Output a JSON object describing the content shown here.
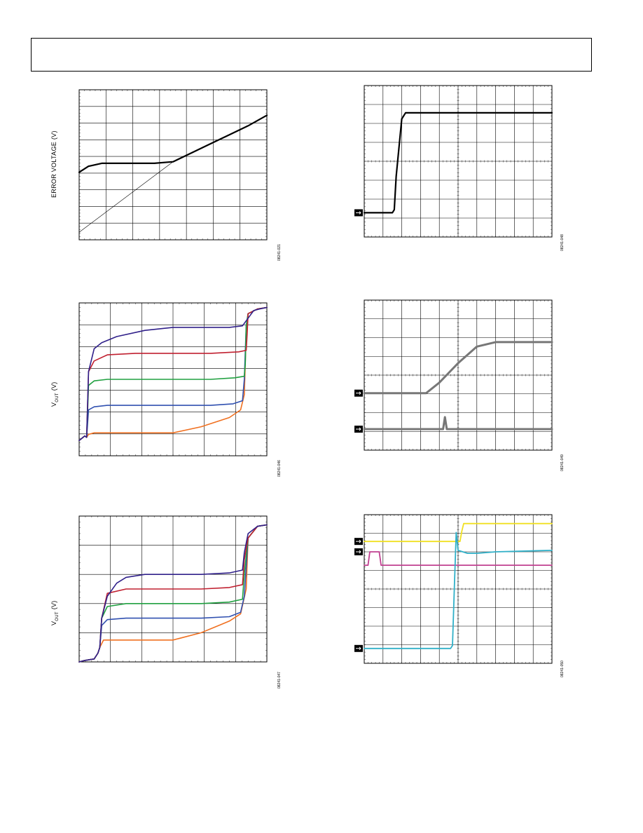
{
  "page": {
    "header": ""
  },
  "figures": [
    {
      "id": "fig-error-voltage",
      "ylabel": "ERROR VOLTAGE (V)",
      "fig_id": "08241-021"
    },
    {
      "id": "fig-vout-1",
      "ylabel_main": "V",
      "ylabel_sub": "OUT",
      "ylabel_unit": " (V)",
      "fig_id": "08241-046"
    },
    {
      "id": "fig-vout-2",
      "ylabel_main": "V",
      "ylabel_sub": "OUT",
      "ylabel_unit": " (V)",
      "fig_id": "08241-047"
    },
    {
      "id": "fig-scope-1",
      "fig_id": "08241-048"
    },
    {
      "id": "fig-scope-2",
      "fig_id": "08241-049"
    },
    {
      "id": "fig-scope-3",
      "fig_id": "08241-050"
    }
  ],
  "chart_data": [
    {
      "type": "line",
      "grid": true,
      "ylabel": "ERROR VOLTAGE (V)",
      "xlim": [
        0,
        1
      ],
      "ylim": [
        0,
        1
      ],
      "series": [
        {
          "x": [
            0,
            0.05,
            0.12,
            0.2,
            0.3,
            0.4,
            0.5,
            0.6,
            0.7,
            0.8,
            0.9,
            1.0
          ],
          "y": [
            0.45,
            0.49,
            0.51,
            0.51,
            0.51,
            0.51,
            0.52,
            0.58,
            0.64,
            0.7,
            0.76,
            0.83
          ],
          "color": "#000000",
          "width": 2.2
        },
        {
          "x": [
            0,
            0.5
          ],
          "y": [
            0.05,
            0.52
          ],
          "color": "#000000",
          "width": 0.6
        }
      ]
    },
    {
      "type": "line",
      "grid": true,
      "ylabel": "VOUT (V)",
      "xlim": [
        0,
        1
      ],
      "ylim": [
        0,
        1
      ],
      "series": [
        {
          "color": "#f07020",
          "x": [
            0,
            0.03,
            0.04,
            0.05,
            0.08,
            0.15,
            0.3,
            0.5,
            0.65,
            0.8,
            0.86,
            0.88,
            0.89,
            0.9,
            0.95,
            1.0
          ],
          "y": [
            0.1,
            0.13,
            0.12,
            0.14,
            0.15,
            0.15,
            0.15,
            0.15,
            0.19,
            0.25,
            0.3,
            0.4,
            0.8,
            0.93,
            0.96,
            0.97
          ]
        },
        {
          "color": "#3050b0",
          "x": [
            0,
            0.03,
            0.04,
            0.05,
            0.08,
            0.15,
            0.3,
            0.5,
            0.7,
            0.82,
            0.87,
            0.88,
            0.89,
            0.9,
            0.95,
            1.0
          ],
          "y": [
            0.1,
            0.13,
            0.12,
            0.3,
            0.32,
            0.33,
            0.33,
            0.33,
            0.33,
            0.34,
            0.36,
            0.5,
            0.85,
            0.93,
            0.96,
            0.97
          ]
        },
        {
          "color": "#20a040",
          "x": [
            0,
            0.03,
            0.04,
            0.05,
            0.08,
            0.15,
            0.3,
            0.5,
            0.7,
            0.83,
            0.88,
            0.885,
            0.89,
            0.9,
            0.95,
            1.0
          ],
          "y": [
            0.1,
            0.13,
            0.12,
            0.46,
            0.49,
            0.5,
            0.5,
            0.5,
            0.5,
            0.51,
            0.52,
            0.6,
            0.85,
            0.93,
            0.96,
            0.97
          ]
        },
        {
          "color": "#c02030",
          "x": [
            0,
            0.03,
            0.04,
            0.05,
            0.08,
            0.15,
            0.3,
            0.5,
            0.7,
            0.85,
            0.89,
            0.895,
            0.9,
            0.95,
            1.0
          ],
          "y": [
            0.1,
            0.13,
            0.12,
            0.55,
            0.62,
            0.66,
            0.67,
            0.67,
            0.67,
            0.68,
            0.69,
            0.8,
            0.93,
            0.96,
            0.97
          ]
        },
        {
          "color": "#30208a",
          "x": [
            0,
            0.03,
            0.04,
            0.05,
            0.08,
            0.12,
            0.2,
            0.35,
            0.5,
            0.6,
            0.8,
            0.87,
            0.9,
            0.93,
            0.96,
            1.0
          ],
          "y": [
            0.1,
            0.13,
            0.12,
            0.55,
            0.7,
            0.74,
            0.78,
            0.82,
            0.84,
            0.84,
            0.84,
            0.85,
            0.9,
            0.95,
            0.96,
            0.97
          ]
        }
      ]
    },
    {
      "type": "line",
      "grid": true,
      "ylabel": "VOUT (V)",
      "xlim": [
        0,
        1
      ],
      "ylim": [
        0,
        1
      ],
      "series": [
        {
          "color": "#f07020",
          "x": [
            0,
            0.03,
            0.08,
            0.1,
            0.11,
            0.13,
            0.2,
            0.35,
            0.5,
            0.65,
            0.8,
            0.86,
            0.89,
            0.9,
            0.95,
            1.0
          ],
          "y": [
            0.0,
            0.01,
            0.02,
            0.06,
            0.1,
            0.15,
            0.15,
            0.15,
            0.15,
            0.2,
            0.28,
            0.33,
            0.5,
            0.85,
            0.93,
            0.94
          ]
        },
        {
          "color": "#3050b0",
          "x": [
            0,
            0.03,
            0.08,
            0.1,
            0.11,
            0.12,
            0.15,
            0.25,
            0.45,
            0.65,
            0.8,
            0.86,
            0.88,
            0.9,
            0.95,
            1.0
          ],
          "y": [
            0.0,
            0.01,
            0.02,
            0.06,
            0.1,
            0.25,
            0.29,
            0.3,
            0.3,
            0.3,
            0.31,
            0.34,
            0.45,
            0.85,
            0.93,
            0.94
          ]
        },
        {
          "color": "#20a040",
          "x": [
            0,
            0.03,
            0.08,
            0.1,
            0.11,
            0.12,
            0.15,
            0.25,
            0.45,
            0.65,
            0.8,
            0.87,
            0.88,
            0.9,
            0.95,
            1.0
          ],
          "y": [
            0.0,
            0.01,
            0.02,
            0.06,
            0.1,
            0.3,
            0.38,
            0.4,
            0.4,
            0.4,
            0.41,
            0.43,
            0.6,
            0.85,
            0.93,
            0.94
          ]
        },
        {
          "color": "#c02030",
          "x": [
            0,
            0.03,
            0.08,
            0.1,
            0.11,
            0.12,
            0.15,
            0.25,
            0.45,
            0.65,
            0.8,
            0.87,
            0.88,
            0.9,
            0.95,
            1.0
          ],
          "y": [
            0.0,
            0.01,
            0.02,
            0.06,
            0.1,
            0.3,
            0.47,
            0.5,
            0.5,
            0.5,
            0.51,
            0.53,
            0.7,
            0.85,
            0.93,
            0.94
          ]
        },
        {
          "color": "#30208a",
          "x": [
            0,
            0.03,
            0.08,
            0.1,
            0.11,
            0.12,
            0.15,
            0.2,
            0.25,
            0.35,
            0.5,
            0.65,
            0.8,
            0.87,
            0.88,
            0.9,
            0.95,
            1.0
          ],
          "y": [
            0.0,
            0.01,
            0.02,
            0.06,
            0.1,
            0.3,
            0.45,
            0.54,
            0.58,
            0.6,
            0.6,
            0.6,
            0.61,
            0.63,
            0.75,
            0.88,
            0.93,
            0.94
          ]
        }
      ]
    },
    {
      "type": "line",
      "grid": true,
      "xlim": [
        0,
        1
      ],
      "ylim": [
        0,
        1
      ],
      "series": [
        {
          "color": "#000000",
          "x": [
            0,
            0.15,
            0.16,
            0.17,
            0.2,
            0.22,
            0.3,
            0.5,
            0.7,
            1.0
          ],
          "y": [
            0.16,
            0.16,
            0.18,
            0.4,
            0.78,
            0.82,
            0.82,
            0.82,
            0.82,
            0.82
          ]
        }
      ]
    },
    {
      "type": "line",
      "grid": true,
      "xlim": [
        0,
        1
      ],
      "ylim": [
        0,
        1
      ],
      "series": [
        {
          "color": "#777777",
          "x": [
            0,
            0.33,
            0.4,
            0.5,
            0.6,
            0.7,
            1.0
          ],
          "y": [
            0.38,
            0.38,
            0.45,
            0.58,
            0.69,
            0.72,
            0.72
          ]
        },
        {
          "color": "#777777",
          "x": [
            0,
            0.42,
            0.43,
            0.44,
            0.45,
            1.0
          ],
          "y": [
            0.14,
            0.14,
            0.22,
            0.14,
            0.14,
            0.14
          ]
        }
      ]
    },
    {
      "type": "line",
      "grid": true,
      "xlim": [
        0,
        1
      ],
      "ylim": [
        0,
        1
      ],
      "series": [
        {
          "color": "#f0e020",
          "x": [
            0,
            0.51,
            0.52,
            0.53,
            1.0
          ],
          "y": [
            0.82,
            0.82,
            0.89,
            0.94,
            0.94
          ]
        },
        {
          "color": "#c04090",
          "x": [
            0,
            0.02,
            0.03,
            0.08,
            0.09,
            0.12,
            0.13,
            1.0
          ],
          "y": [
            0.66,
            0.66,
            0.75,
            0.75,
            0.66,
            0.66,
            0.66,
            0.66
          ]
        },
        {
          "color": "#30b0c8",
          "x": [
            0,
            0.45,
            0.46,
            0.47,
            0.48,
            0.49,
            0.5,
            0.55,
            0.6,
            0.7,
            1.0
          ],
          "y": [
            0.1,
            0.1,
            0.1,
            0.12,
            0.5,
            0.88,
            0.76,
            0.74,
            0.74,
            0.75,
            0.76
          ]
        }
      ]
    }
  ]
}
